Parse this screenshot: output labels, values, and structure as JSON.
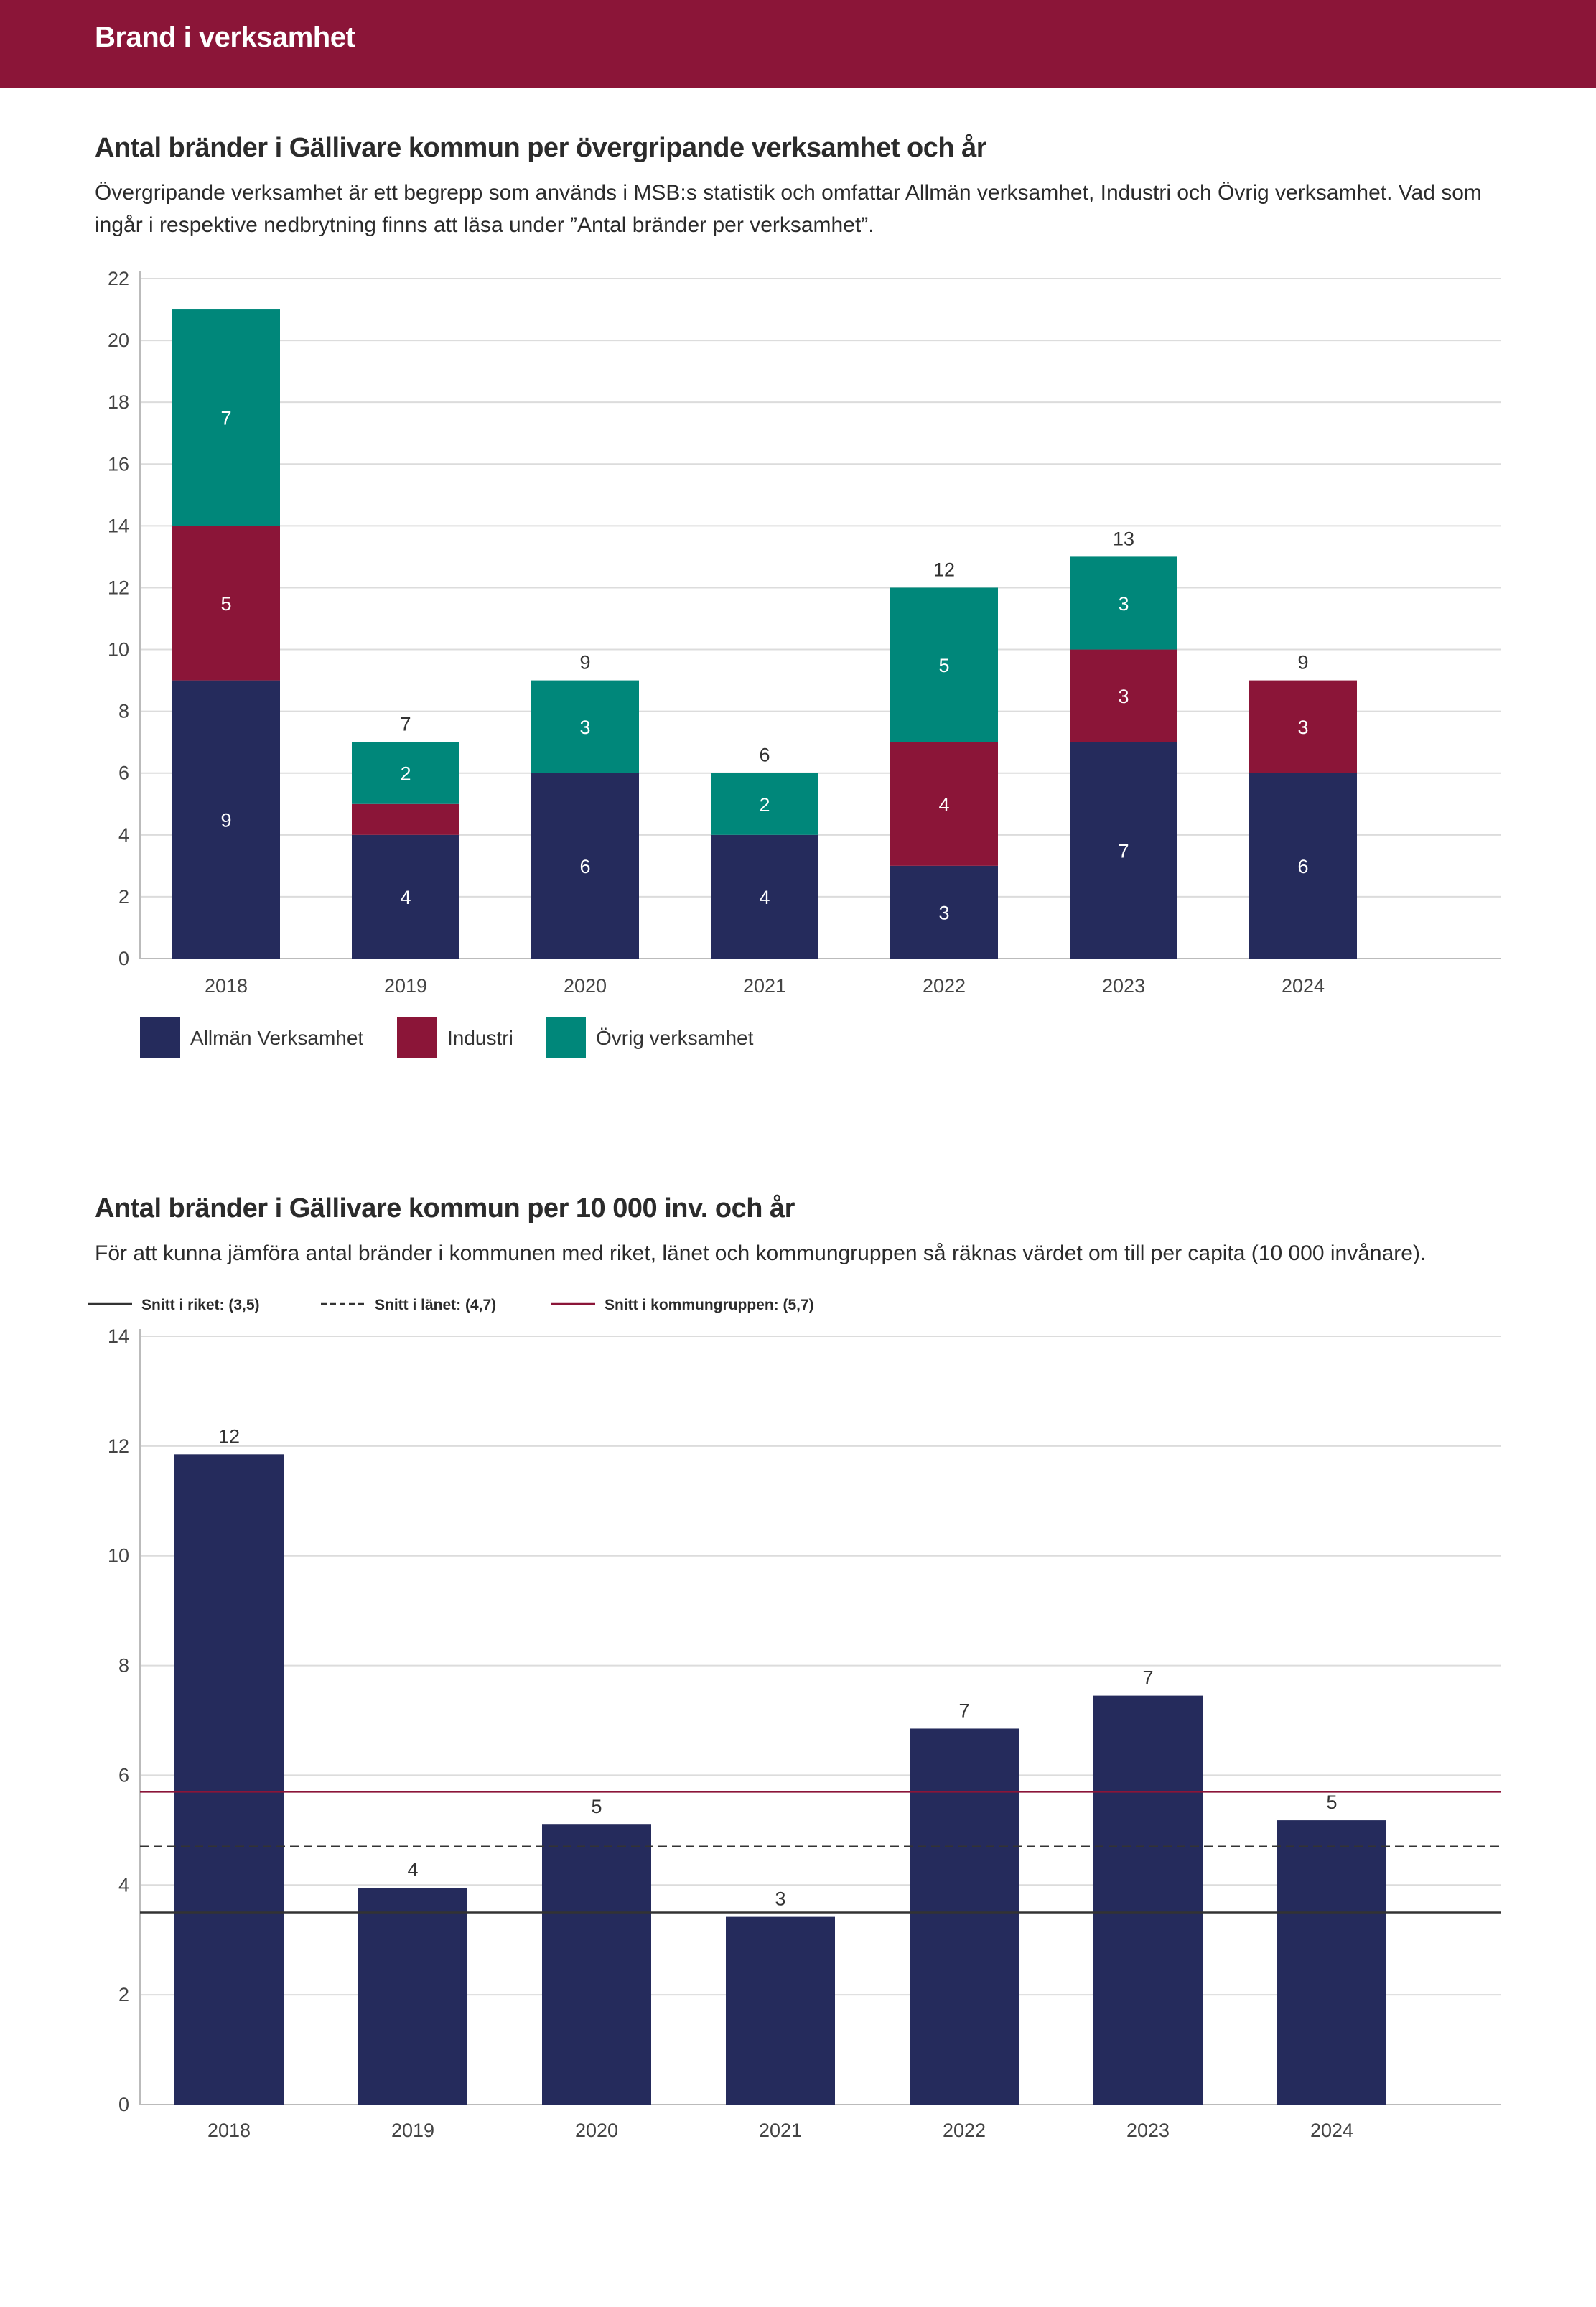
{
  "header": {
    "title": "Brand i verksamhet"
  },
  "section1": {
    "title": "Antal bränder i Gällivare kommun per övergripande verksamhet och år",
    "description": "Övergripande verksamhet är ett begrepp som används i MSB:s statistik och omfattar Allmän verksamhet, Industri och Övrig verksamhet. Vad som ingår i respektive nedbrytning finns att läsa under ”Antal bränder per verksamhet”."
  },
  "section2": {
    "title": "Antal bränder i Gällivare kommun per 10 000 inv. och år",
    "description": "För att kunna jämföra antal bränder i kommunen med riket, länet och kommungruppen så räknas värdet om till per capita (10 000 invånare)."
  },
  "chart_data": [
    {
      "type": "bar",
      "stacked": true,
      "title": "Antal bränder i Gällivare kommun per övergripande verksamhet och år",
      "categories": [
        "2018",
        "2019",
        "2020",
        "2021",
        "2022",
        "2023",
        "2024"
      ],
      "series": [
        {
          "name": "Allmän Verksamhet",
          "color": "#252b5c",
          "values": [
            9,
            4,
            6,
            4,
            3,
            7,
            6
          ]
        },
        {
          "name": "Industri",
          "color": "#8b1538",
          "values": [
            5,
            1,
            0,
            0,
            4,
            3,
            3
          ]
        },
        {
          "name": "Övrig verksamhet",
          "color": "#00877a",
          "values": [
            7,
            2,
            3,
            2,
            5,
            3,
            0
          ]
        }
      ],
      "segment_labels": [
        [
          "9",
          "4",
          "6",
          "4",
          "3",
          "7",
          "6"
        ],
        [
          "5",
          "",
          "",
          "",
          "4",
          "3",
          "3"
        ],
        [
          "7",
          "2",
          "3",
          "2",
          "5",
          "3",
          ""
        ]
      ],
      "total_labels": [
        "",
        "7",
        "9",
        "6",
        "12",
        "13",
        "9"
      ],
      "yticks": [
        "0",
        "2",
        "4",
        "6",
        "8",
        "10",
        "12",
        "14",
        "16",
        "18",
        "20",
        "22"
      ],
      "ylim": [
        0,
        22
      ],
      "legend_position": "bottom-left"
    },
    {
      "type": "bar",
      "title": "Antal bränder i Gällivare kommun per 10 000 inv. och år",
      "categories": [
        "2018",
        "2019",
        "2020",
        "2021",
        "2022",
        "2023",
        "2024"
      ],
      "values": [
        11.85,
        3.95,
        5.1,
        3.42,
        6.85,
        7.45,
        5.18
      ],
      "value_labels": [
        "12",
        "4",
        "5",
        "3",
        "7",
        "7",
        "5"
      ],
      "bar_color": "#252b5c",
      "yticks": [
        "0",
        "2",
        "4",
        "6",
        "8",
        "10",
        "12",
        "14"
      ],
      "ylim": [
        0,
        14
      ],
      "reference_lines": [
        {
          "label": "Snitt i riket: (3,5)",
          "value": 3.5,
          "color": "#333333",
          "style": "solid"
        },
        {
          "label": "Snitt i länet: (4,7)",
          "value": 4.7,
          "color": "#333333",
          "style": "dashed"
        },
        {
          "label": "Snitt i kommungruppen: (5,7)",
          "value": 5.7,
          "color": "#8b1538",
          "style": "solid"
        }
      ],
      "legend_position": "top-left"
    }
  ]
}
